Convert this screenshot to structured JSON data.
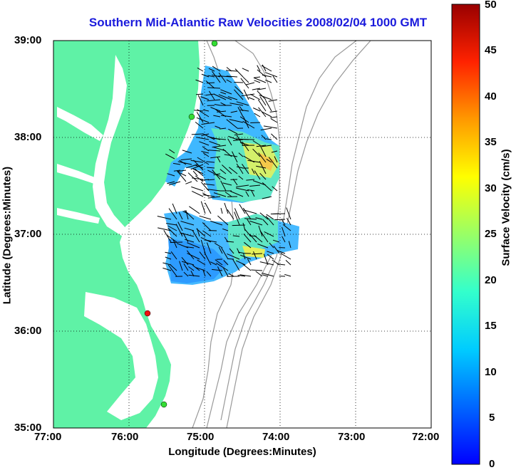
{
  "title": "Southern Mid-Atlantic Raw Velocities 2008/02/04 1000 GMT",
  "axes": {
    "xlabel": "Longitude (Degrees:Minutes)",
    "ylabel": "Latitude (Degrees:Minutes)",
    "xticks": [
      "77:00",
      "76:00",
      "75:00",
      "74:00",
      "73:00",
      "72:00"
    ],
    "yticks": [
      "39:00",
      "38:00",
      "37:00",
      "36:00",
      "35:00"
    ],
    "xlim": [
      -77,
      -72
    ],
    "ylim": [
      35,
      39
    ],
    "grid": "dotted"
  },
  "colorbar": {
    "label": "Surface Velocity (cm/s)",
    "ticks": [
      "50",
      "45",
      "40",
      "35",
      "30",
      "25",
      "20",
      "15",
      "10",
      "5",
      "0"
    ],
    "range": [
      0,
      50
    ],
    "colormap": "jet"
  },
  "colors": {
    "land": "#5ff2a6",
    "water": "#ffffff",
    "bathymetry": "#999999",
    "title": "#1a1adc",
    "station_green": "#33dd33",
    "station_red": "#ee1111"
  },
  "stations": [
    {
      "lon": -75.1,
      "lat": 39.0,
      "status": "green"
    },
    {
      "lon": -75.1,
      "lat": 38.25,
      "status": "green"
    },
    {
      "lon": -75.75,
      "lat": 36.2,
      "status": "red"
    },
    {
      "lon": -75.5,
      "lat": 35.3,
      "status": "green"
    }
  ]
}
